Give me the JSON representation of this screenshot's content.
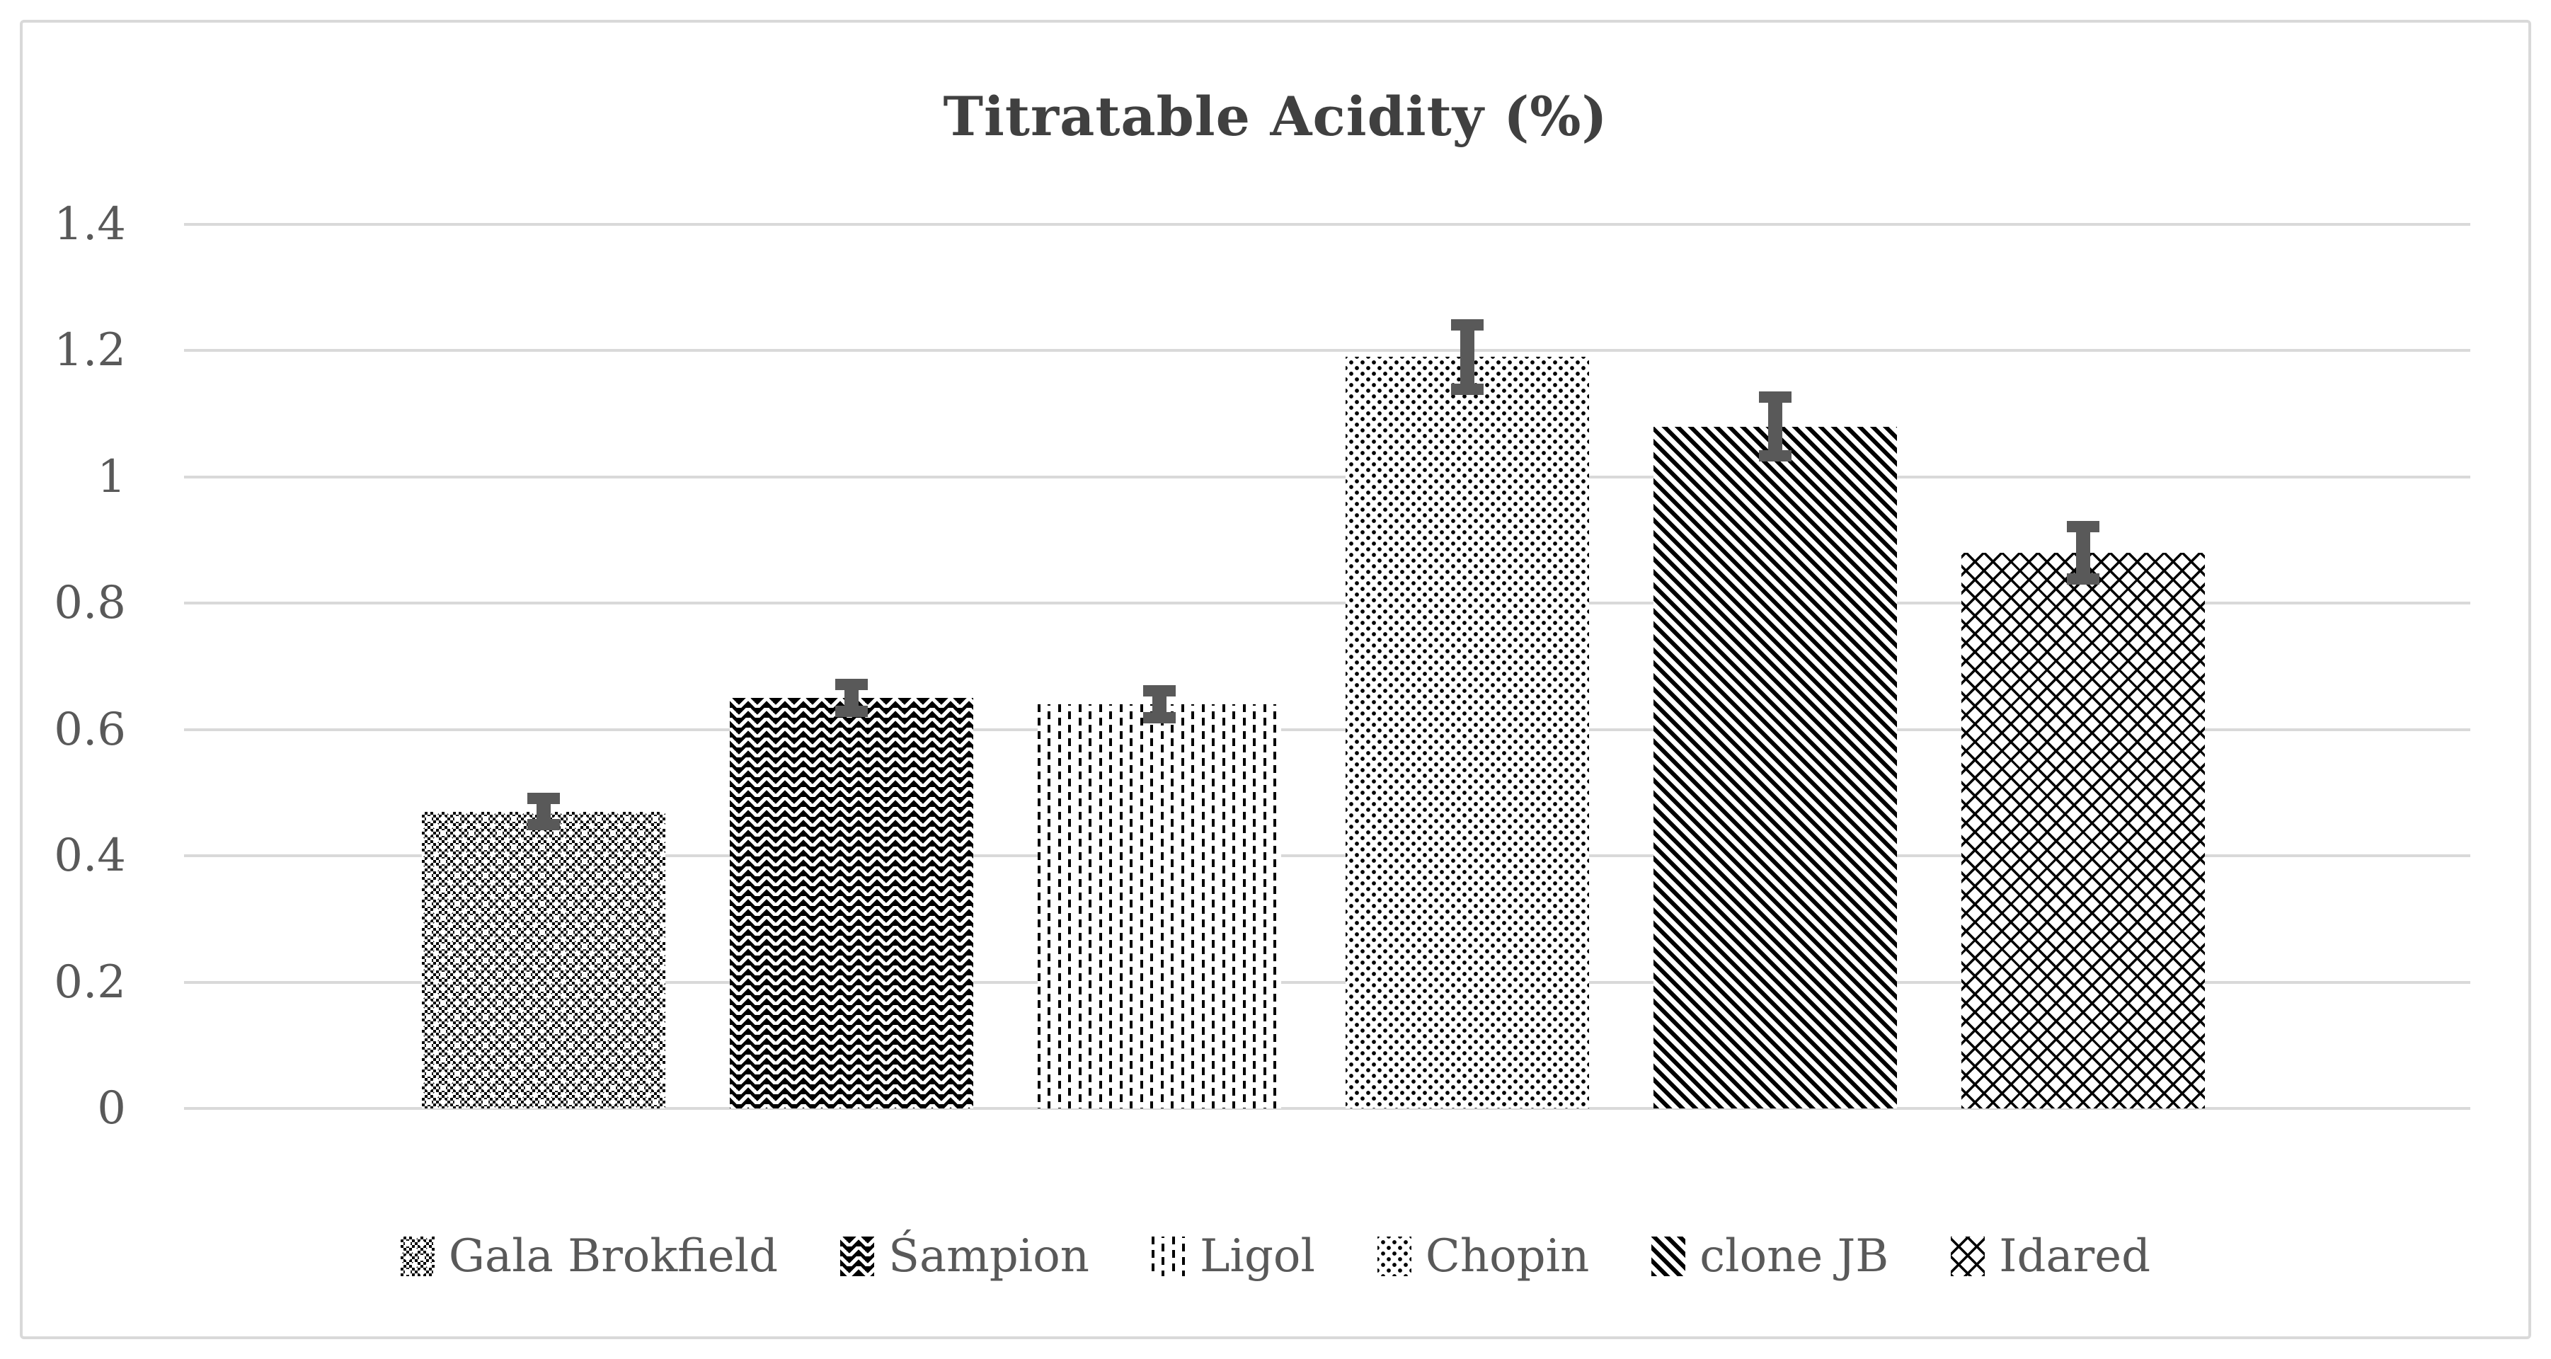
{
  "chart_data": {
    "type": "bar",
    "title": "Titratable Acidity (%)",
    "categories": [
      "Gala Brokfield",
      "Śampion",
      "Ligol",
      "Chopin",
      "clone JB",
      "Idared"
    ],
    "values": [
      0.47,
      0.65,
      0.64,
      1.19,
      1.08,
      0.88
    ],
    "error_bars": [
      0.03,
      0.03,
      0.03,
      0.06,
      0.055,
      0.05
    ],
    "ylim": [
      0,
      1.4
    ],
    "ytick_labels": [
      "0",
      "0.2",
      "0.4",
      "0.6",
      "0.8",
      "1",
      "1.2",
      "1.4"
    ],
    "xlabel": "",
    "ylabel": "",
    "grid": "horizontal",
    "legend_position": "bottom",
    "patterns": [
      "checker",
      "zigzag",
      "vertical-dash",
      "dot",
      "diagonal-stripe",
      "diagonal-weave"
    ],
    "colors": {
      "pattern_fg": "#000000",
      "bar_bg": "#ffffff",
      "title_text": "#404040",
      "axis_text": "#595959",
      "legend_text": "#595959",
      "gridline": "#d9d9d9",
      "error_bar": "#595959",
      "chart_border": "#d9d9d9",
      "background": "#ffffff"
    }
  }
}
